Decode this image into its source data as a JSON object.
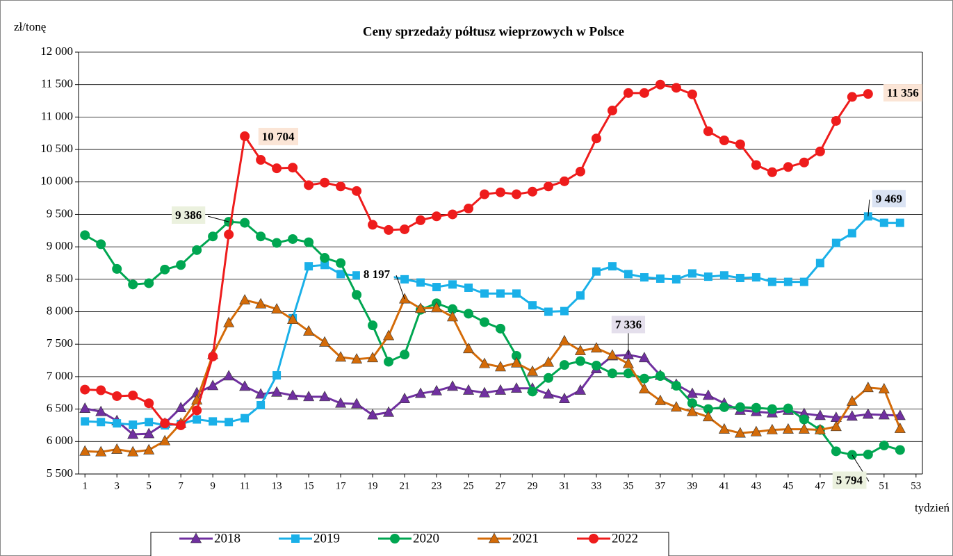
{
  "chart_data": {
    "type": "line",
    "title": "Ceny sprzedaży półtusz wieprzowych w Polsce",
    "y_label": "zł/tonę",
    "x_label": "tydzień",
    "x": [
      1,
      2,
      3,
      4,
      5,
      6,
      7,
      8,
      9,
      10,
      11,
      12,
      13,
      14,
      15,
      16,
      17,
      18,
      19,
      20,
      21,
      22,
      23,
      24,
      25,
      26,
      27,
      28,
      29,
      30,
      31,
      32,
      33,
      34,
      35,
      36,
      37,
      38,
      39,
      40,
      41,
      42,
      43,
      44,
      45,
      46,
      47,
      48,
      49,
      50,
      51,
      52
    ],
    "xlim": [
      0.6,
      53.4
    ],
    "xticks": [
      1,
      3,
      5,
      7,
      9,
      11,
      13,
      15,
      17,
      19,
      21,
      23,
      25,
      27,
      29,
      31,
      33,
      35,
      37,
      39,
      41,
      43,
      45,
      47,
      49,
      51,
      53
    ],
    "ylim": [
      5500,
      12000
    ],
    "yticks": [
      {
        "value": 5500,
        "label": "5 500"
      },
      {
        "value": 6000,
        "label": "6 000"
      },
      {
        "value": 6500,
        "label": "6 500"
      },
      {
        "value": 7000,
        "label": "7 000"
      },
      {
        "value": 7500,
        "label": "7 500"
      },
      {
        "value": 8000,
        "label": "8 000"
      },
      {
        "value": 8500,
        "label": "8 500"
      },
      {
        "value": 9000,
        "label": "9 000"
      },
      {
        "value": 9500,
        "label": "9 500"
      },
      {
        "value": 10000,
        "label": "10 000"
      },
      {
        "value": 10500,
        "label": "10 500"
      },
      {
        "value": 11000,
        "label": "11 000"
      },
      {
        "value": 11500,
        "label": "11 500"
      },
      {
        "value": 12000,
        "label": "12 000"
      }
    ],
    "grid": true,
    "legend": "bottom",
    "series": [
      {
        "name": "2018",
        "color": "#7030a0",
        "marker": "triangle",
        "values": [
          6510,
          6460,
          6320,
          6110,
          6120,
          6280,
          6520,
          6750,
          6860,
          7010,
          6850,
          6730,
          6760,
          6710,
          6690,
          6690,
          6590,
          6580,
          6410,
          6450,
          6660,
          6740,
          6780,
          6850,
          6790,
          6750,
          6790,
          6820,
          6820,
          6730,
          6660,
          6790,
          7120,
          7320,
          7336,
          7290,
          7020,
          6880,
          6740,
          6710,
          6590,
          6480,
          6460,
          6440,
          6480,
          6430,
          6400,
          6370,
          6390,
          6420,
          6410,
          6400
        ],
        "value_labels": [
          null,
          null,
          null,
          null,
          null,
          null,
          null,
          null,
          null,
          null,
          null,
          null,
          null,
          null,
          null,
          null,
          null,
          null,
          null,
          null,
          null,
          null,
          null,
          null,
          null,
          null,
          null,
          null,
          null,
          null,
          null,
          null,
          null,
          null,
          "7 336",
          null,
          null,
          null,
          null,
          null,
          null,
          null,
          null,
          null,
          null,
          null,
          null,
          null,
          null,
          null,
          null,
          null
        ]
      },
      {
        "name": "2019",
        "color": "#1ab0e8",
        "marker": "square",
        "values": [
          6310,
          6300,
          6280,
          6260,
          6300,
          6250,
          6270,
          6340,
          6310,
          6300,
          6360,
          6560,
          7020,
          7900,
          8700,
          8720,
          8580,
          8560,
          8530,
          8550,
          8500,
          8450,
          8380,
          8420,
          8370,
          8280,
          8280,
          8280,
          8100,
          8000,
          8010,
          8250,
          8620,
          8700,
          8580,
          8530,
          8510,
          8500,
          8590,
          8540,
          8560,
          8520,
          8530,
          8460,
          8460,
          8460,
          8750,
          9060,
          9210,
          9469,
          9370,
          9370
        ],
        "value_labels": [
          null,
          null,
          null,
          null,
          null,
          null,
          null,
          null,
          null,
          null,
          null,
          null,
          null,
          null,
          null,
          null,
          null,
          null,
          null,
          null,
          null,
          null,
          null,
          null,
          null,
          null,
          null,
          null,
          null,
          null,
          null,
          null,
          null,
          null,
          null,
          null,
          null,
          null,
          null,
          null,
          null,
          null,
          null,
          null,
          null,
          null,
          null,
          null,
          null,
          "9 469",
          null,
          null
        ]
      },
      {
        "name": "2020",
        "color": "#00a651",
        "marker": "circle",
        "values": [
          9180,
          9040,
          8660,
          8420,
          8440,
          8650,
          8720,
          8950,
          9160,
          9386,
          9370,
          9160,
          9060,
          9120,
          9070,
          8830,
          8750,
          8260,
          7790,
          7230,
          7340,
          8030,
          8130,
          8040,
          7970,
          7840,
          7740,
          7320,
          6770,
          6980,
          7180,
          7240,
          7170,
          7050,
          7050,
          6970,
          7010,
          6860,
          6590,
          6500,
          6530,
          6530,
          6520,
          6500,
          6510,
          6340,
          6180,
          5850,
          5794,
          5800,
          5940,
          5870
        ],
        "value_labels": [
          null,
          null,
          null,
          null,
          null,
          null,
          null,
          null,
          null,
          "9 386",
          null,
          null,
          null,
          null,
          null,
          null,
          null,
          null,
          null,
          null,
          null,
          null,
          null,
          null,
          null,
          null,
          null,
          null,
          null,
          null,
          null,
          null,
          null,
          null,
          null,
          null,
          null,
          null,
          null,
          null,
          null,
          null,
          null,
          null,
          null,
          null,
          null,
          null,
          "5 794",
          null,
          null,
          null
        ]
      },
      {
        "name": "2021",
        "color": "#d46b08",
        "marker": "triangle",
        "values": [
          5850,
          5840,
          5880,
          5840,
          5870,
          6010,
          6280,
          6640,
          7340,
          7830,
          8180,
          8120,
          8040,
          7880,
          7700,
          7530,
          7300,
          7270,
          7290,
          7630,
          8197,
          8050,
          8060,
          7920,
          7430,
          7200,
          7150,
          7210,
          7080,
          7220,
          7550,
          7400,
          7440,
          7330,
          7200,
          6810,
          6630,
          6530,
          6460,
          6380,
          6190,
          6130,
          6150,
          6180,
          6190,
          6190,
          6180,
          6230,
          6620,
          6830,
          6810,
          6200
        ],
        "value_labels": [
          null,
          null,
          null,
          null,
          null,
          null,
          null,
          null,
          null,
          null,
          null,
          null,
          null,
          null,
          null,
          null,
          null,
          null,
          null,
          null,
          "8 197",
          null,
          null,
          null,
          null,
          null,
          null,
          null,
          null,
          null,
          null,
          null,
          null,
          null,
          null,
          null,
          null,
          null,
          null,
          null,
          null,
          null,
          null,
          null,
          null,
          null,
          null,
          null,
          null,
          null,
          null,
          null
        ]
      },
      {
        "name": "2022",
        "color": "#ee1c1c",
        "marker": "circle",
        "values": [
          6800,
          6790,
          6700,
          6710,
          6590,
          6280,
          6250,
          6480,
          7310,
          9190,
          10704,
          10340,
          10210,
          10220,
          9950,
          9990,
          9930,
          9860,
          9340,
          9260,
          9270,
          9410,
          9470,
          9500,
          9590,
          9810,
          9840,
          9810,
          9850,
          9930,
          10010,
          10160,
          10670,
          11100,
          11370,
          11370,
          11500,
          11450,
          11350,
          10780,
          10640,
          10580,
          10260,
          10150,
          10230,
          10300,
          10470,
          10940,
          11310,
          11356,
          null,
          null
        ],
        "value_labels": [
          null,
          null,
          null,
          null,
          null,
          null,
          null,
          null,
          null,
          null,
          "10 704",
          null,
          null,
          null,
          null,
          null,
          null,
          null,
          null,
          null,
          null,
          null,
          null,
          null,
          null,
          null,
          null,
          null,
          null,
          null,
          null,
          null,
          null,
          null,
          null,
          null,
          null,
          null,
          null,
          null,
          null,
          null,
          null,
          null,
          null,
          null,
          null,
          null,
          null,
          "11 356",
          null,
          null
        ]
      }
    ]
  }
}
